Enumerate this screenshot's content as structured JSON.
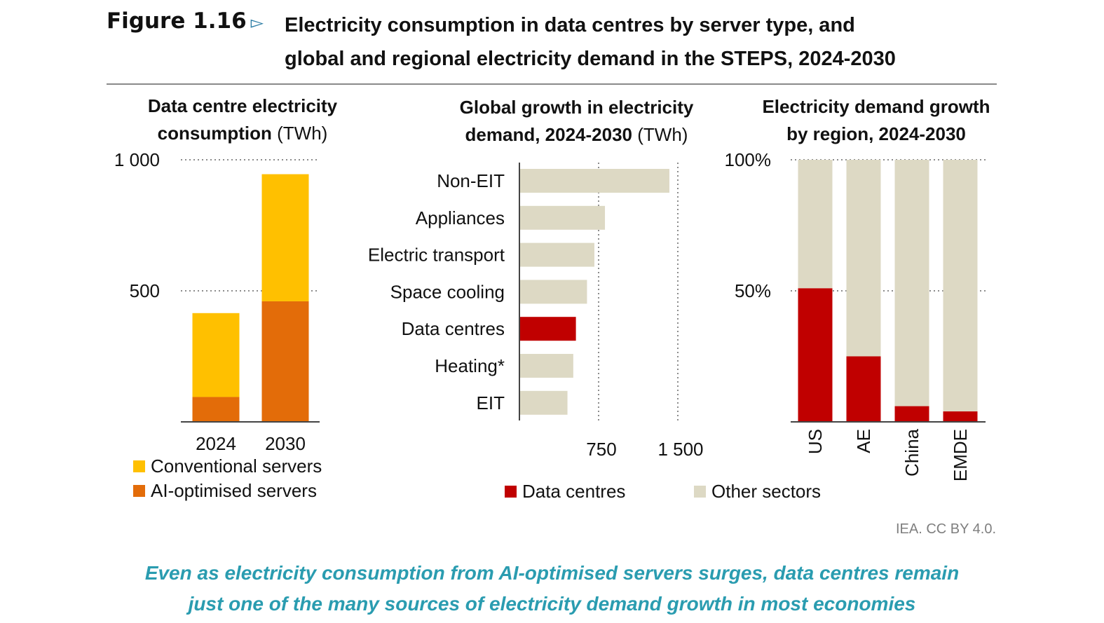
{
  "figure": {
    "label": "Figure 1.16",
    "arrow": "▻",
    "title_line1": "Electricity consumption in data centres by server type, and",
    "title_line2": "global and regional electricity demand in the STEPS, 2024-2030"
  },
  "colors": {
    "conventional": "#FFC000",
    "ai": "#E36C09",
    "data_centres": "#C00000",
    "other": "#DDD9C4",
    "caption": "#2a9cb0"
  },
  "chart_data": [
    {
      "type": "bar",
      "stacked": true,
      "title_bold_1": "Data centre electricity",
      "title_bold_2": "consumption",
      "title_unit": "(TWh)",
      "categories": [
        "2024",
        "2030"
      ],
      "series": [
        {
          "name": "AI-optimised servers",
          "values": [
            95,
            460
          ]
        },
        {
          "name": "Conventional servers",
          "values": [
            320,
            485
          ]
        }
      ],
      "ylim": [
        0,
        1000
      ],
      "yticks": [
        500,
        1000
      ],
      "ytick_labels": [
        "500",
        "1 000"
      ],
      "gridlines": "dotted",
      "legend": [
        "Conventional servers",
        "AI-optimised servers"
      ]
    },
    {
      "type": "bar",
      "orientation": "horizontal",
      "title_bold_1": "Global growth in electricity",
      "title_bold_2": "demand, 2024-2030",
      "title_unit": "(TWh)",
      "categories": [
        "Non-EIT",
        "Appliances",
        "Electric transport",
        "Space cooling",
        "Data centres",
        "Heating*",
        "EIT"
      ],
      "values": [
        1420,
        810,
        710,
        640,
        535,
        510,
        455
      ],
      "highlight": [
        "Other sectors",
        "Other sectors",
        "Other sectors",
        "Other sectors",
        "Data centres",
        "Other sectors",
        "Other sectors"
      ],
      "xlim": [
        0,
        1600
      ],
      "xticks": [
        750,
        1500
      ],
      "xtick_labels": [
        "750",
        "1 500"
      ],
      "gridlines": "dotted",
      "legend": [
        "Data centres",
        "Other sectors"
      ]
    },
    {
      "type": "bar",
      "stacked": true,
      "percent": true,
      "title_bold_1": "Electricity demand growth",
      "title_bold_2": "by region, 2024-2030",
      "categories": [
        "US",
        "AE",
        "China",
        "EMDE"
      ],
      "series": [
        {
          "name": "Data centres",
          "values": [
            51,
            25,
            6,
            4
          ]
        },
        {
          "name": "Other sectors",
          "values": [
            49,
            75,
            94,
            96
          ]
        }
      ],
      "ylim": [
        0,
        100
      ],
      "yticks": [
        50,
        100
      ],
      "ytick_labels": [
        "50%",
        "100%"
      ],
      "gridlines": "dotted"
    }
  ],
  "source": "IEA. CC BY 4.0.",
  "caption_line1": "Even as electricity consumption from AI-optimised servers surges, data centres remain",
  "caption_line2": "just one of the many sources of electricity demand growth in most economies"
}
